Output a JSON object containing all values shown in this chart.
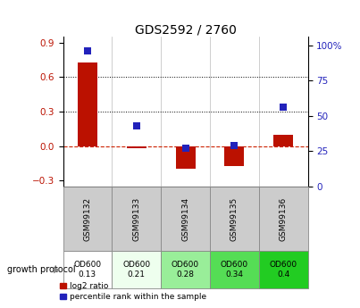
{
  "title": "GDS2592 / 2760",
  "samples": [
    "GSM99132",
    "GSM99133",
    "GSM99134",
    "GSM99135",
    "GSM99136"
  ],
  "log2_ratio": [
    0.73,
    -0.02,
    -0.2,
    -0.17,
    0.1
  ],
  "percentile_rank": [
    96,
    43,
    27,
    29,
    56
  ],
  "growth_protocol_labels": [
    "OD600\n0.13",
    "OD600\n0.21",
    "OD600\n0.28",
    "OD600\n0.34",
    "OD600\n0.4"
  ],
  "growth_protocol_colors": [
    "#ffffff",
    "#eeffee",
    "#99ee99",
    "#55dd55",
    "#22cc22"
  ],
  "left_ylim": [
    -0.35,
    0.95
  ],
  "right_ylim": [
    0,
    106
  ],
  "left_yticks": [
    -0.3,
    0.0,
    0.3,
    0.6,
    0.9
  ],
  "right_yticks": [
    0,
    25,
    50,
    75,
    100
  ],
  "bar_color_red": "#bb1100",
  "dot_color_blue": "#2222bb",
  "hline_color": "#cc2200",
  "dotted_line_color": "#000000",
  "legend_red_label": "log2 ratio",
  "legend_blue_label": "percentile rank within the sample",
  "growth_protocol_text": "growth protocol",
  "bar_width": 0.4,
  "dot_size": 30
}
